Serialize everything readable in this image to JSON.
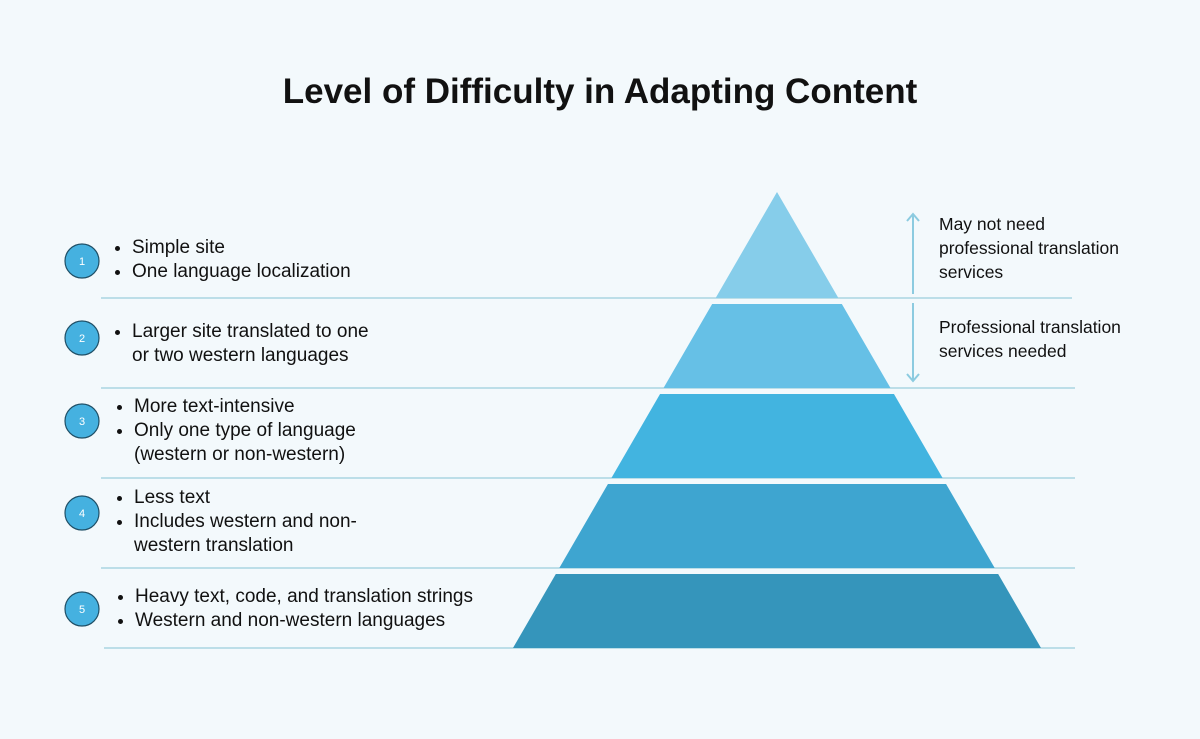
{
  "title": "Level of Difficulty in Adapting Content",
  "colors": {
    "layer1": "#86cdea",
    "layer2": "#66c0e6",
    "layer3": "#42b4e0",
    "layer4": "#3ea5d0",
    "layer5": "#3595bb",
    "divider": "#9ccfdc",
    "badge": "#45b1e0"
  },
  "levels": [
    {
      "number": "1",
      "items": [
        "Simple site",
        "One language localization"
      ]
    },
    {
      "number": "2",
      "items": [
        "Larger site translated to one",
        "or two western languages"
      ]
    },
    {
      "number": "3",
      "items": [
        "More text-intensive",
        "Only one type of language",
        "(western or non-western)"
      ]
    },
    {
      "number": "4",
      "items": [
        "Less text",
        "Includes western and non-",
        "western translation"
      ]
    },
    {
      "number": "5",
      "items": [
        "Heavy text, code, and translation strings",
        "Western and non-western languages"
      ]
    }
  ],
  "notes": {
    "top": [
      "May not need",
      "professional translation",
      "services"
    ],
    "bottom": [
      "Professional translation",
      "services needed"
    ]
  }
}
